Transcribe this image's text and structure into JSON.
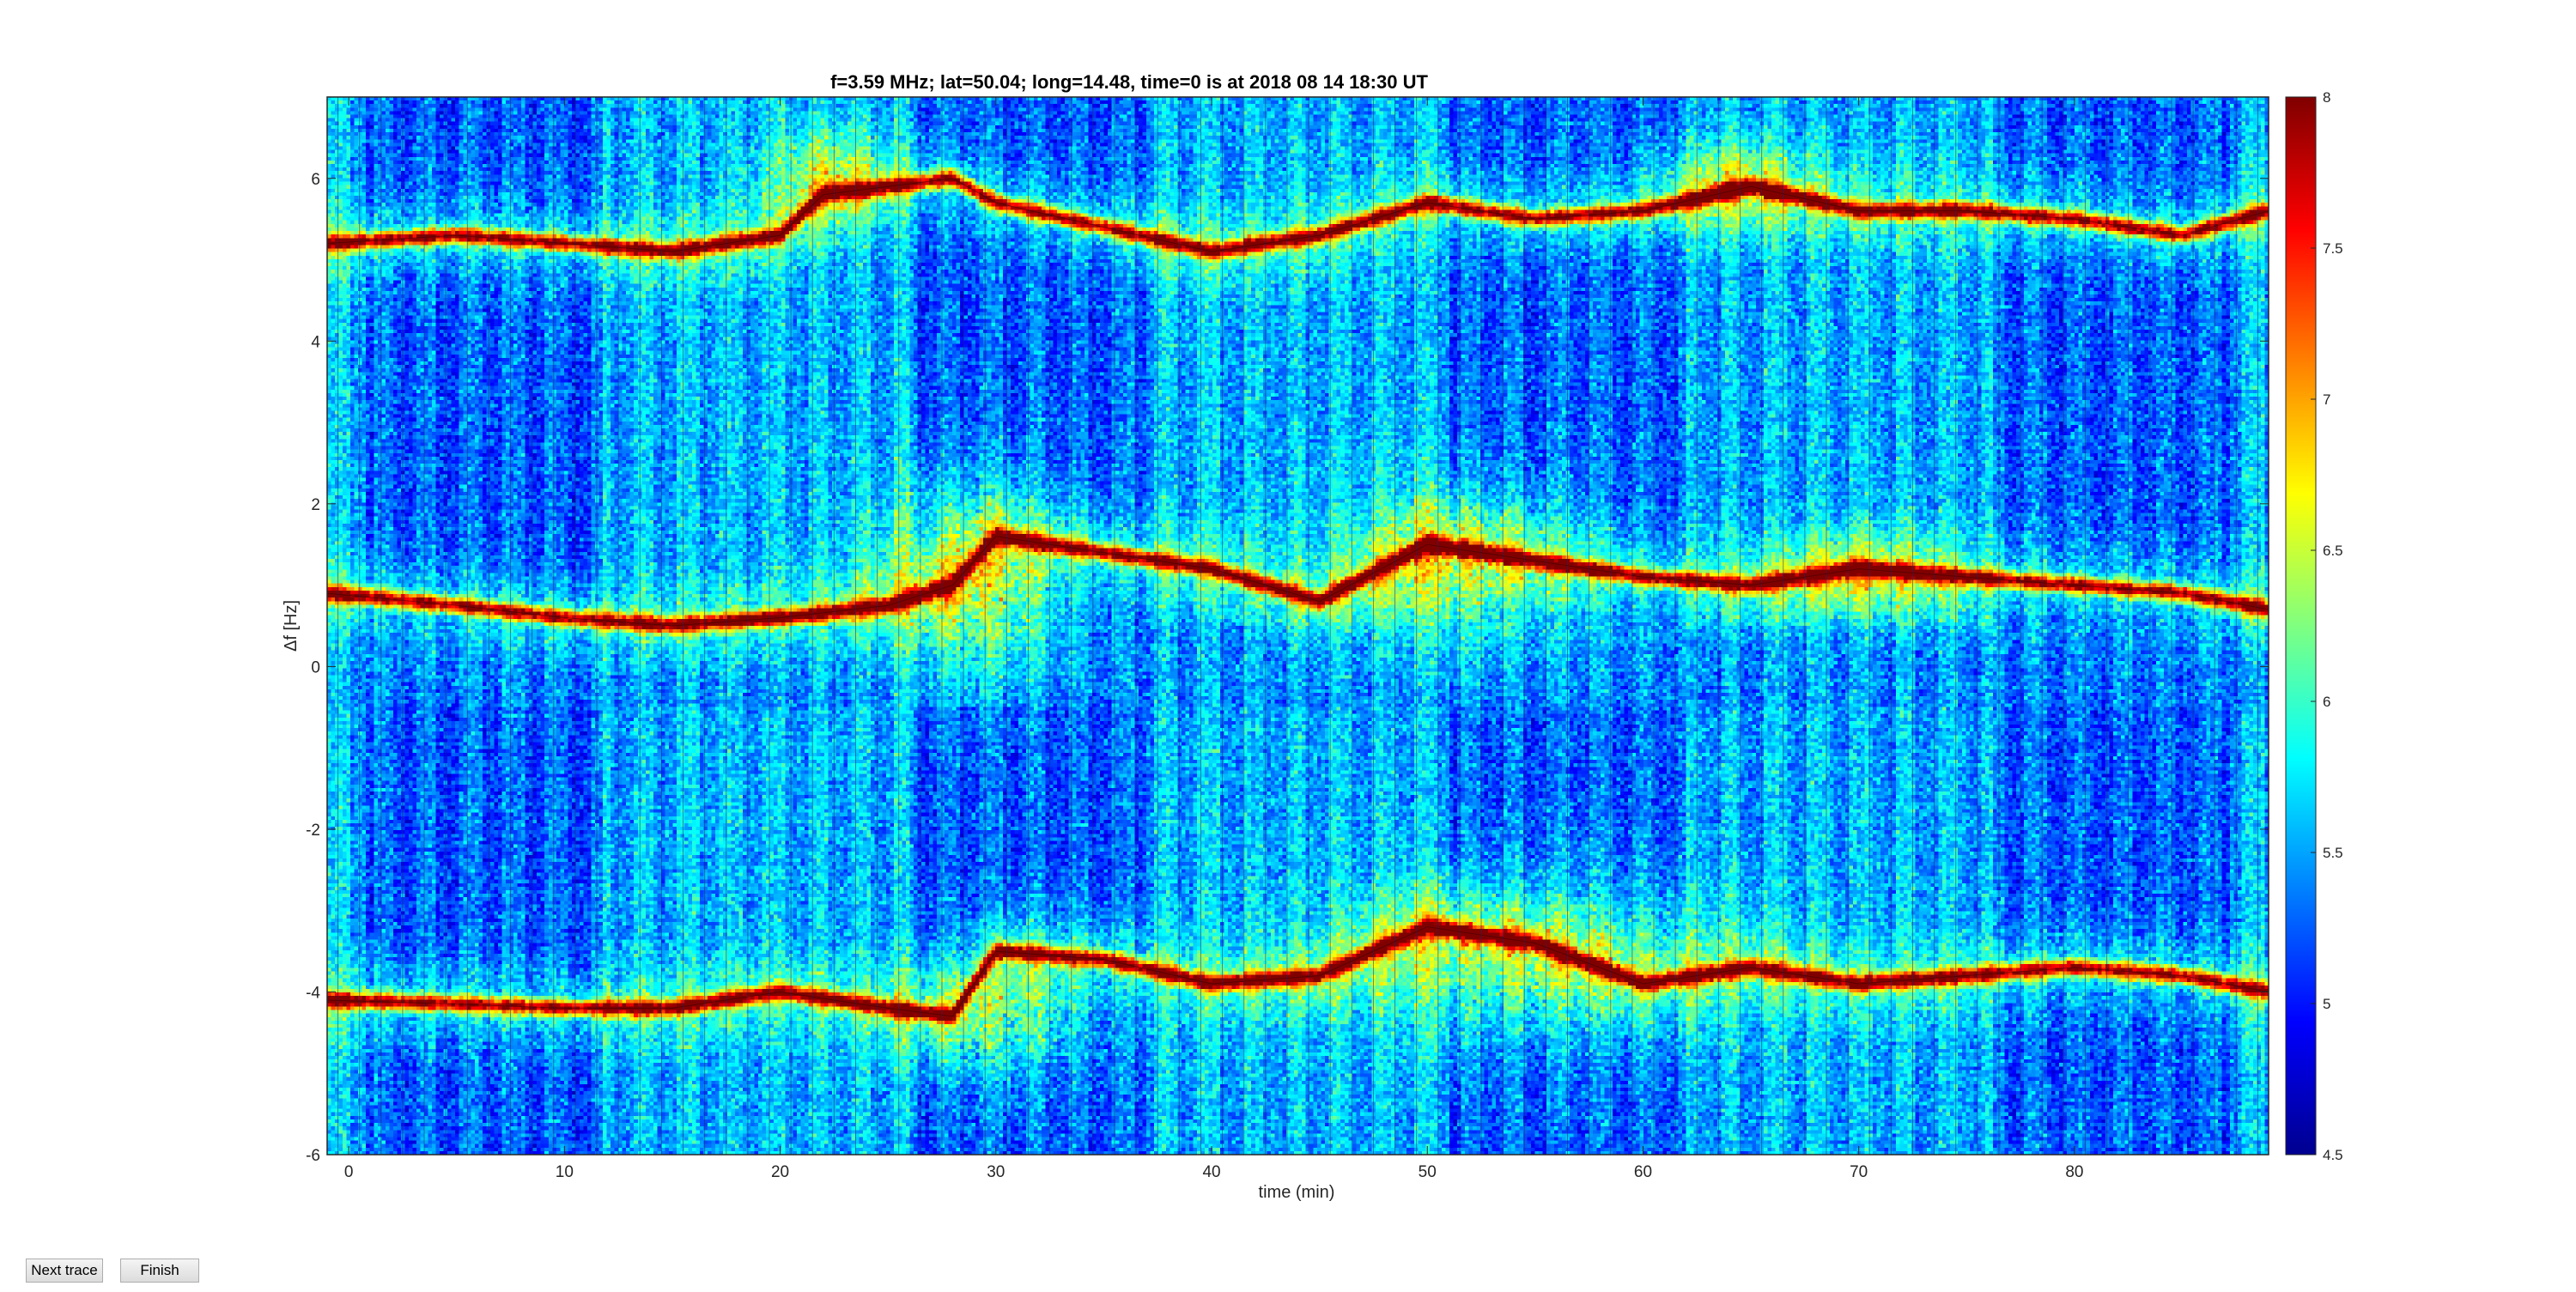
{
  "window": {
    "buttons": {
      "next_trace": "Next trace",
      "finish": "Finish"
    }
  },
  "chart_data": {
    "type": "heatmap",
    "title": "f=3.59 MHz;  lat=50.04; long=14.48, time=0 is at 2018 08 14 18:30 UT",
    "xlabel": "time (min)",
    "ylabel": "Δf [Hz]",
    "xlim": [
      -1,
      89
    ],
    "ylim": [
      -6,
      7
    ],
    "xticks": [
      0,
      10,
      20,
      30,
      40,
      50,
      60,
      70,
      80
    ],
    "yticks": [
      -6,
      -4,
      -2,
      0,
      2,
      4,
      6
    ],
    "colorbar": {
      "range": [
        4.5,
        8
      ],
      "ticks": [
        "4.5",
        "5",
        "5.5",
        "6",
        "6.5",
        "7",
        "7.5",
        "8"
      ],
      "colormap": "jet"
    },
    "grid": false,
    "traces": [
      {
        "x": [
          -1,
          5,
          10,
          15,
          20,
          25,
          28,
          30,
          35,
          40,
          45,
          50,
          55,
          60,
          65,
          70,
          75,
          80,
          85,
          89
        ],
        "y": [
          0.9,
          0.75,
          0.6,
          0.5,
          0.6,
          0.75,
          1.0,
          1.6,
          1.4,
          1.2,
          0.8,
          1.5,
          1.3,
          1.1,
          1.0,
          1.2,
          1.1,
          1.0,
          0.9,
          0.7
        ]
      },
      {
        "x": [
          -1,
          5,
          10,
          15,
          20,
          22,
          25,
          28,
          30,
          35,
          40,
          45,
          50,
          55,
          60,
          65,
          70,
          75,
          80,
          85,
          89
        ],
        "y": [
          5.2,
          5.3,
          5.2,
          5.1,
          5.3,
          5.8,
          5.9,
          6.0,
          5.7,
          5.4,
          5.1,
          5.3,
          5.7,
          5.5,
          5.6,
          5.9,
          5.6,
          5.6,
          5.5,
          5.3,
          5.6
        ]
      },
      {
        "x": [
          -1,
          5,
          10,
          15,
          20,
          25,
          28,
          30,
          35,
          40,
          45,
          50,
          55,
          60,
          65,
          70,
          75,
          80,
          85,
          89
        ],
        "y": [
          -4.1,
          -4.15,
          -4.2,
          -4.2,
          -4.0,
          -4.2,
          -4.3,
          -3.5,
          -3.6,
          -3.9,
          -3.8,
          -3.2,
          -3.4,
          -3.9,
          -3.7,
          -3.9,
          -3.8,
          -3.7,
          -3.8,
          -4.0
        ]
      }
    ],
    "blobs": [
      {
        "x": 29,
        "y": 1.1,
        "rx": 3,
        "ry": 0.8,
        "amp": 1.3
      },
      {
        "x": 52,
        "y": 1.2,
        "rx": 4,
        "ry": 0.7,
        "amp": 1.0
      },
      {
        "x": 70,
        "y": 1.1,
        "rx": 3,
        "ry": 0.4,
        "amp": 0.7
      },
      {
        "x": 30,
        "y": -4.2,
        "rx": 3,
        "ry": 0.6,
        "amp": 1.0
      },
      {
        "x": 55,
        "y": -3.6,
        "rx": 6,
        "ry": 0.7,
        "amp": 1.0
      },
      {
        "x": 22,
        "y": 6.0,
        "rx": 2,
        "ry": 0.5,
        "amp": 0.8
      },
      {
        "x": 64,
        "y": 5.9,
        "rx": 2.5,
        "ry": 0.4,
        "amp": 0.8
      }
    ]
  }
}
